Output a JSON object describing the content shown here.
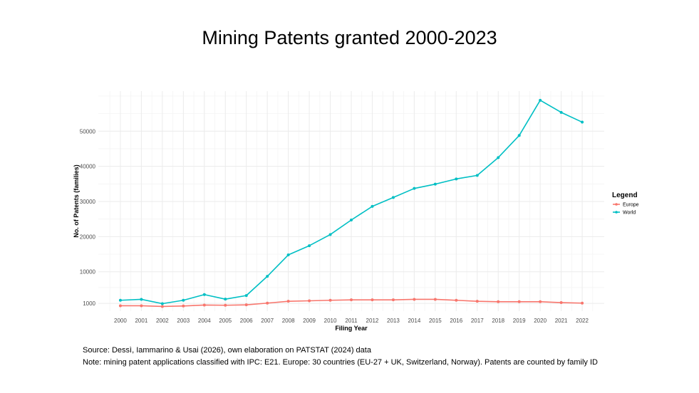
{
  "page": {
    "title": "Mining Patents granted 2000-2023",
    "source": "Source: Dessì, Iammarino & Usai (2026), own elaboration on PATSTAT (2024) data",
    "note": "Note: mining patent applications classified with IPC: E21. Europe: 30 countries (EU-27 + UK, Switzerland, Norway). Patents are counted by family ID"
  },
  "chart_data": {
    "type": "line",
    "title": "Mining Patents granted 2000-2023",
    "xlabel": "Filing Year",
    "ylabel": "No. of Patents (families)",
    "x": [
      2000,
      2001,
      2002,
      2003,
      2004,
      2005,
      2006,
      2007,
      2008,
      2009,
      2010,
      2011,
      2012,
      2013,
      2014,
      2015,
      2016,
      2017,
      2018,
      2019,
      2020,
      2021,
      2022
    ],
    "x_tick_labels": [
      "2000",
      "2001",
      "2002",
      "2003",
      "2004",
      "2005",
      "2006",
      "2007",
      "2008",
      "2009",
      "2010",
      "2011",
      "2012",
      "2013",
      "2014",
      "2015",
      "2016",
      "2017",
      "2018",
      "2019",
      "2020",
      "2021",
      "2022"
    ],
    "y_ticks": [
      1000,
      10000,
      20000,
      30000,
      40000,
      50000
    ],
    "y_tick_labels": [
      "1000",
      "10000",
      "20000",
      "30000",
      "40000",
      "50000"
    ],
    "xlim": [
      1998.95,
      2023.05
    ],
    "ylim": [
      -1200,
      61400
    ],
    "grid": true,
    "legend": {
      "title": "Legend",
      "position": "right"
    },
    "series": [
      {
        "name": "Europe",
        "color": "#F8766D",
        "values": [
          330,
          330,
          120,
          260,
          530,
          470,
          590,
          1080,
          1600,
          1740,
          1890,
          2010,
          2010,
          2010,
          2150,
          2150,
          1890,
          1600,
          1480,
          1480,
          1480,
          1220,
          1080
        ]
      },
      {
        "name": "World",
        "color": "#00BFC4",
        "values": [
          1890,
          2150,
          930,
          1890,
          3510,
          2210,
          3230,
          8700,
          14800,
          17420,
          20590,
          24730,
          28600,
          31140,
          33710,
          34930,
          36410,
          37420,
          42490,
          48780,
          58800,
          55350,
          52580
        ]
      }
    ]
  }
}
